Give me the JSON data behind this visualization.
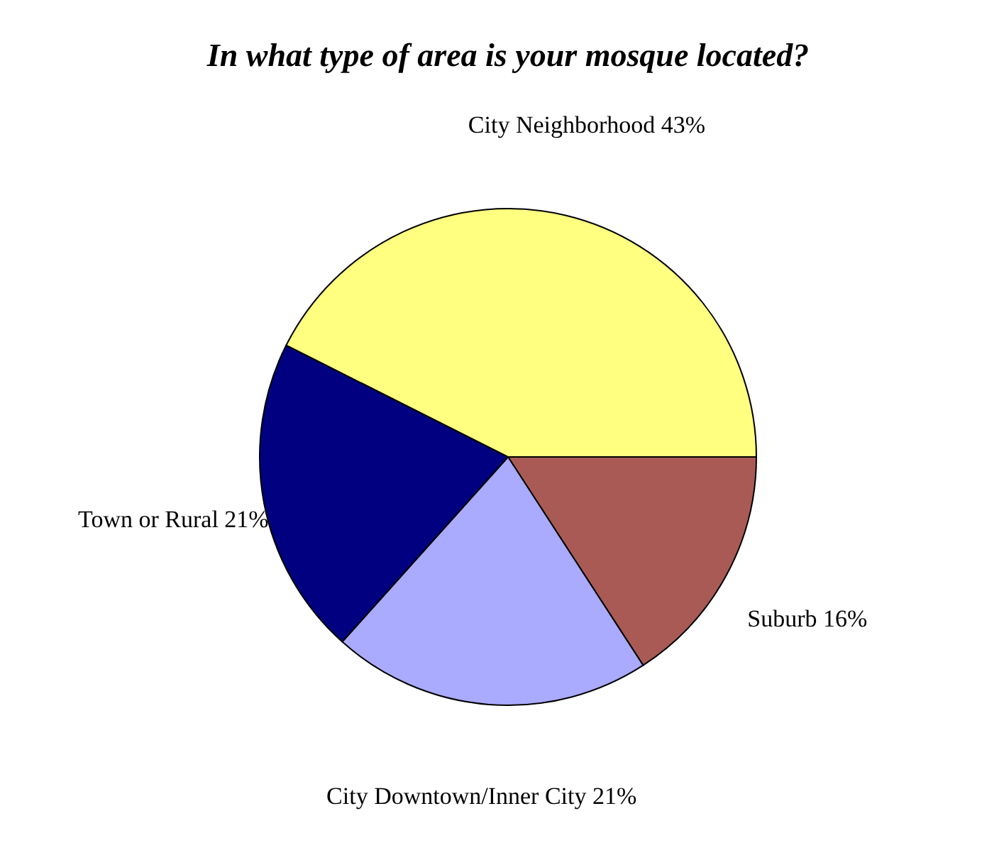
{
  "chart_data": {
    "type": "pie",
    "title": "In what type of area is your mosque located?",
    "categories": [
      "Suburb",
      "City Downtown/Inner City",
      "Town or Rural",
      "City Neighborhood"
    ],
    "values": [
      16,
      21,
      21,
      43
    ],
    "value_labels": [
      "16%",
      "21%",
      "21%",
      "43%"
    ],
    "colors": [
      "#aa5a55",
      "#aaaaff",
      "#000080",
      "#ffff80"
    ],
    "legend": false
  }
}
